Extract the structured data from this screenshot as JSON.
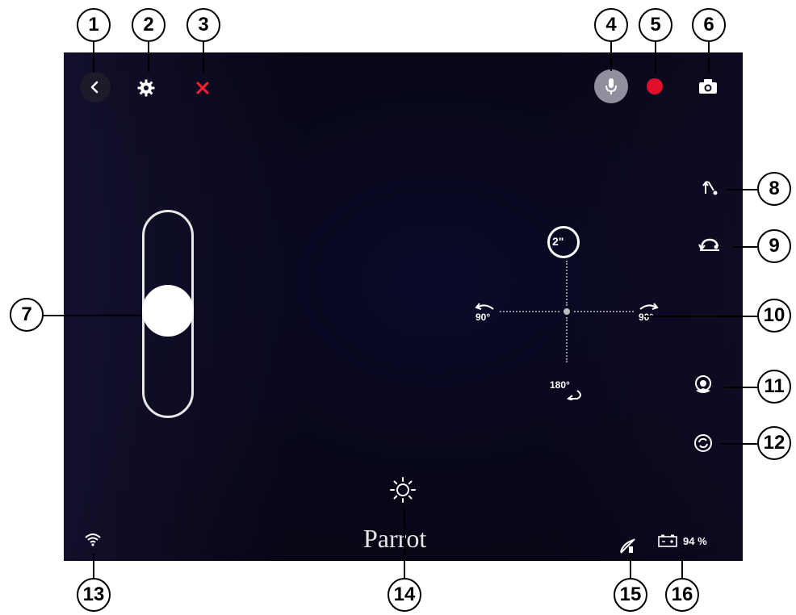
{
  "callouts": {
    "c1": "1",
    "c2": "2",
    "c3": "3",
    "c4": "4",
    "c5": "5",
    "c6": "6",
    "c7": "7",
    "c8": "8",
    "c9": "9",
    "c10": "10",
    "c11": "11",
    "c12": "12",
    "c13": "13",
    "c14": "14",
    "c15": "15",
    "c16": "16"
  },
  "rotation": {
    "top_label": "2\"",
    "left_label": "90°",
    "right_label": "90°",
    "bottom_label": "180°"
  },
  "brand": "Parrot",
  "battery": {
    "percent_text": "94 %",
    "level": 0.94
  },
  "colors": {
    "record": "#e0102a",
    "close": "#ff2030",
    "screen_bg": "#0a0922"
  },
  "icons": [
    "back-icon",
    "gear-icon",
    "close-icon",
    "microphone-icon",
    "record-icon",
    "camera-icon",
    "throttle-slider",
    "jump-icon",
    "flip-icon",
    "rotation-pad",
    "target-icon",
    "refresh-icon",
    "wifi-icon",
    "brightness-icon",
    "signal-icon",
    "battery-icon"
  ]
}
